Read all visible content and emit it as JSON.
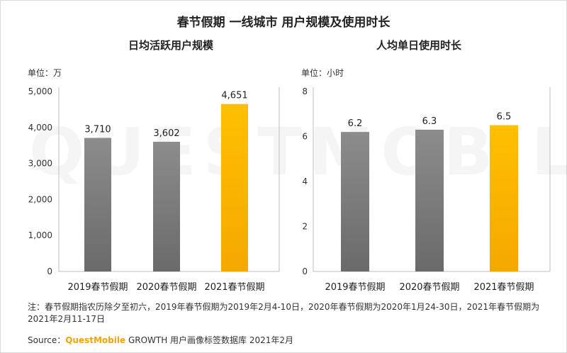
{
  "main_title": "春节假期 一线城市 用户规模及使用时长",
  "watermark": "QUESTMOBILE",
  "colors": {
    "gray_bar": "#8c8c8c",
    "highlight_bar": "#ffc000",
    "axis": "#bfbfbf"
  },
  "chart_data": [
    {
      "type": "bar",
      "title": "日均活跃用户规模",
      "unit_label": "单位：万",
      "categories": [
        "2019春节假期",
        "2020春节假期",
        "2021春节假期"
      ],
      "values": [
        3710,
        3602,
        4651
      ],
      "value_labels": [
        "3,710",
        "3,602",
        "4,651"
      ],
      "ylim": [
        0,
        5000
      ],
      "yticks": [
        0,
        1000,
        2000,
        3000,
        4000,
        5000
      ],
      "ytick_labels": [
        "0",
        "1,000",
        "2,000",
        "3,000",
        "4,000",
        "5,000"
      ],
      "highlight_index": 2
    },
    {
      "type": "bar",
      "title": "人均单日使用时长",
      "unit_label": "单位：小时",
      "categories": [
        "2019春节假期",
        "2020春节假期",
        "2021春节假期"
      ],
      "values": [
        6.2,
        6.3,
        6.5
      ],
      "value_labels": [
        "6.2",
        "6.3",
        "6.5"
      ],
      "ylim": [
        0,
        8
      ],
      "yticks": [
        0,
        2,
        4,
        6,
        8
      ],
      "ytick_labels": [
        "0",
        "2",
        "4",
        "6",
        "8"
      ],
      "highlight_index": 2
    }
  ],
  "note": "注：春节假期指农历除夕至初六，2019年春节假期为2019年2月4-10日，2020年春节假期为2020年1月24-30日，2021年春节假期为2021年2月11-17日",
  "source": {
    "prefix": "Source：",
    "brand": "QuestMobile",
    "suffix": " GROWTH 用户画像标签数据库 2021年2月"
  }
}
